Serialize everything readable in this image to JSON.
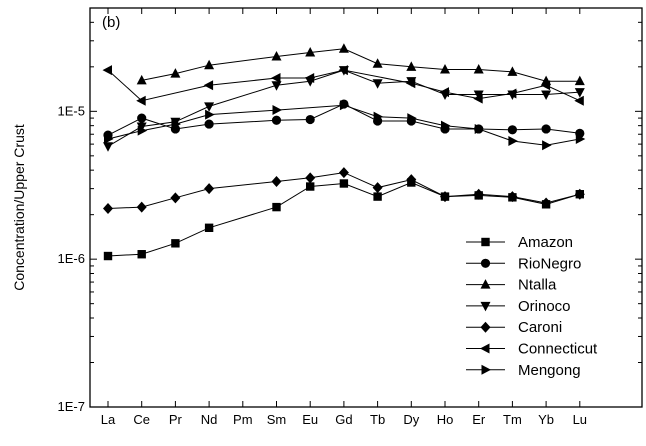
{
  "chart_data": {
    "type": "line",
    "title": "",
    "panel_label": "(b)",
    "xlabel": "",
    "ylabel": "Concentration/Upper Crust",
    "yscale": "log",
    "ylim": [
      1e-07,
      5e-05
    ],
    "y_ticks": [
      {
        "value": 1e-07,
        "label": "1E-7"
      },
      {
        "value": 1e-06,
        "label": "1E-6"
      },
      {
        "value": 1e-05,
        "label": "1E-5"
      }
    ],
    "categories": [
      "La",
      "Ce",
      "Pr",
      "Nd",
      "Pm",
      "Sm",
      "Eu",
      "Gd",
      "Tb",
      "Dy",
      "Ho",
      "Er",
      "Tm",
      "Yb",
      "Lu"
    ],
    "grid": false,
    "legend_position": "bottom-right",
    "line_color": "#000000",
    "series": [
      {
        "name": "Amazon",
        "marker": "square",
        "values": [
          1.05e-06,
          1.08e-06,
          1.28e-06,
          1.63e-06,
          null,
          2.25e-06,
          3.1e-06,
          3.25e-06,
          2.65e-06,
          3.3e-06,
          2.65e-06,
          2.7e-06,
          2.62e-06,
          2.35e-06,
          2.75e-06
        ]
      },
      {
        "name": "RioNegro",
        "marker": "circle",
        "values": [
          6.9e-06,
          9e-06,
          7.6e-06,
          8.2e-06,
          null,
          8.7e-06,
          8.8e-06,
          1.12e-05,
          8.6e-06,
          8.6e-06,
          7.6e-06,
          7.6e-06,
          7.5e-06,
          7.6e-06,
          7.1e-06
        ]
      },
      {
        "name": "Ntalla",
        "marker": "triangle-up",
        "values": [
          null,
          1.62e-05,
          1.8e-05,
          2.05e-05,
          null,
          2.35e-05,
          2.5e-05,
          2.65e-05,
          2.1e-05,
          2e-05,
          1.92e-05,
          1.92e-05,
          1.85e-05,
          1.6e-05,
          1.6e-05
        ]
      },
      {
        "name": "Orinoco",
        "marker": "triangle-down",
        "values": [
          5.8e-06,
          7.9e-06,
          8.5e-06,
          1.08e-05,
          null,
          1.5e-05,
          1.6e-05,
          1.9e-05,
          1.55e-05,
          1.6e-05,
          1.3e-05,
          1.3e-05,
          1.3e-05,
          1.3e-05,
          1.35e-05
        ]
      },
      {
        "name": "Caroni",
        "marker": "diamond",
        "values": [
          2.2e-06,
          2.25e-06,
          2.6e-06,
          3e-06,
          null,
          3.35e-06,
          3.55e-06,
          3.85e-06,
          3.05e-06,
          3.45e-06,
          2.65e-06,
          2.75e-06,
          2.65e-06,
          2.4e-06,
          2.75e-06
        ]
      },
      {
        "name": "Connecticut",
        "marker": "triangle-left",
        "values": [
          1.9e-05,
          1.18e-05,
          null,
          1.5e-05,
          null,
          1.68e-05,
          1.68e-05,
          1.9e-05,
          null,
          1.55e-05,
          1.35e-05,
          1.22e-05,
          1.32e-05,
          1.5e-05,
          1.18e-05
        ]
      },
      {
        "name": "Mengong",
        "marker": "triangle-right",
        "values": [
          6.5e-06,
          7.4e-06,
          8.2e-06,
          9.5e-06,
          null,
          1.02e-05,
          null,
          1.1e-05,
          9.2e-06,
          9e-06,
          8e-06,
          7.6e-06,
          6.3e-06,
          5.9e-06,
          6.5e-06
        ]
      }
    ]
  }
}
